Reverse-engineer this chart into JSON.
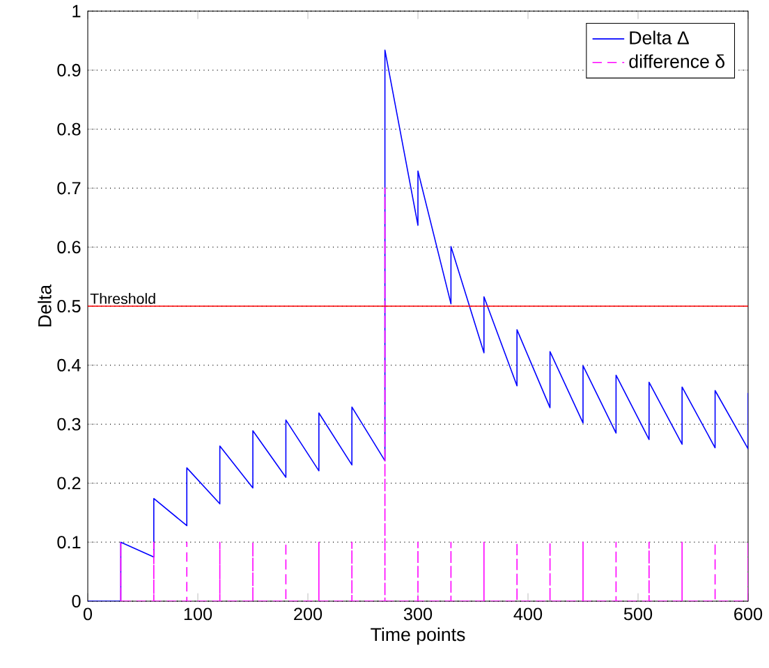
{
  "chart_data": {
    "type": "line",
    "xlabel": "Time points",
    "ylabel": "Delta",
    "xlim": [
      0,
      600
    ],
    "ylim": [
      0,
      1
    ],
    "xticks": [
      0,
      100,
      200,
      300,
      400,
      500,
      600
    ],
    "yticks": [
      0,
      0.1,
      0.2,
      0.3,
      0.4,
      0.5,
      0.6,
      0.7,
      0.8,
      0.9,
      1
    ],
    "grid": "y",
    "legend": "top right",
    "ref_lines": [
      {
        "axis": "y",
        "value": 0.5,
        "label": "Threshold",
        "color": "#ff0000"
      }
    ],
    "series": [
      {
        "name": "Delta Δ",
        "color": "#0000ff",
        "line_style": "solid",
        "x": [
          0,
          30,
          30,
          60,
          60,
          90,
          90,
          120,
          120,
          150,
          150,
          180,
          180,
          210,
          210,
          240,
          240,
          270,
          270,
          300,
          300,
          330,
          330,
          360,
          360,
          390,
          390,
          420,
          420,
          450,
          450,
          480,
          480,
          510,
          510,
          540,
          540,
          570,
          570,
          600,
          600
        ],
        "values": [
          0,
          0,
          0.1,
          0.075,
          0.174,
          0.128,
          0.226,
          0.165,
          0.263,
          0.192,
          0.289,
          0.21,
          0.307,
          0.221,
          0.319,
          0.231,
          0.329,
          0.238,
          0.934,
          0.637,
          0.729,
          0.504,
          0.601,
          0.421,
          0.516,
          0.365,
          0.46,
          0.328,
          0.423,
          0.302,
          0.399,
          0.285,
          0.383,
          0.274,
          0.371,
          0.266,
          0.363,
          0.26,
          0.357,
          0.258,
          0.353
        ]
      },
      {
        "name": "difference δ",
        "color": "#ff00ff",
        "line_style": "dashed",
        "x": [
          30,
          30,
          30,
          60,
          60,
          60,
          90,
          90,
          90,
          120,
          120,
          120,
          150,
          150,
          150,
          180,
          180,
          180,
          210,
          210,
          210,
          240,
          240,
          240,
          270,
          270,
          270,
          300,
          300,
          300,
          330,
          330,
          330,
          360,
          360,
          360,
          390,
          390,
          390,
          420,
          420,
          420,
          450,
          450,
          450,
          480,
          480,
          480,
          510,
          510,
          510,
          540,
          540,
          540,
          570,
          570,
          570,
          600,
          600,
          600
        ],
        "values": [
          0,
          0.1,
          0,
          0,
          0.1,
          0,
          0,
          0.1,
          0,
          0,
          0.1,
          0,
          0,
          0.1,
          0,
          0,
          0.1,
          0,
          0,
          0.1,
          0,
          0,
          0.1,
          0,
          0,
          0.7,
          0,
          0,
          0.1,
          0,
          0,
          0.1,
          0,
          0,
          0.1,
          0,
          0,
          0.1,
          0,
          0,
          0.1,
          0,
          0,
          0.1,
          0,
          0,
          0.1,
          0,
          0,
          0.1,
          0,
          0,
          0.1,
          0,
          0,
          0.1,
          0,
          0,
          0.1,
          0
        ]
      }
    ]
  }
}
